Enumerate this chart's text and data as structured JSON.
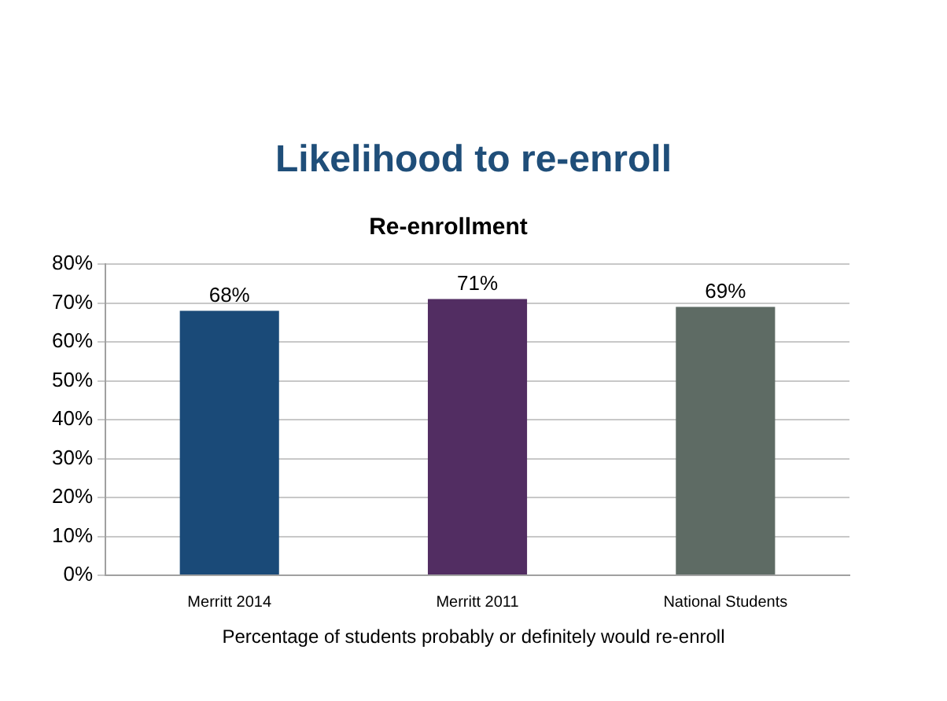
{
  "chart_data": {
    "type": "bar",
    "title": "Likelihood to re-enroll",
    "subtitle": "Re-enrollment",
    "categories": [
      "Merritt 2014",
      "Merritt 2011",
      "National Students"
    ],
    "values": [
      68,
      71,
      69
    ],
    "colors": [
      "#1a4a78",
      "#522d62",
      "#5e6b64"
    ],
    "value_labels": [
      "68%",
      "71%",
      "69%"
    ],
    "ylim": [
      0,
      80
    ],
    "yticks": [
      {
        "value": 0,
        "label": "0%"
      },
      {
        "value": 10,
        "label": "10%"
      },
      {
        "value": 20,
        "label": "20%"
      },
      {
        "value": 30,
        "label": "30%"
      },
      {
        "value": 40,
        "label": "40%"
      },
      {
        "value": 50,
        "label": "50%"
      },
      {
        "value": 60,
        "label": "60%"
      },
      {
        "value": 70,
        "label": "70%"
      },
      {
        "value": 80,
        "label": "80%"
      }
    ],
    "grid": "y",
    "legend": false,
    "annotations": [
      "Percentage of students probably or definitely would re-enroll"
    ]
  }
}
